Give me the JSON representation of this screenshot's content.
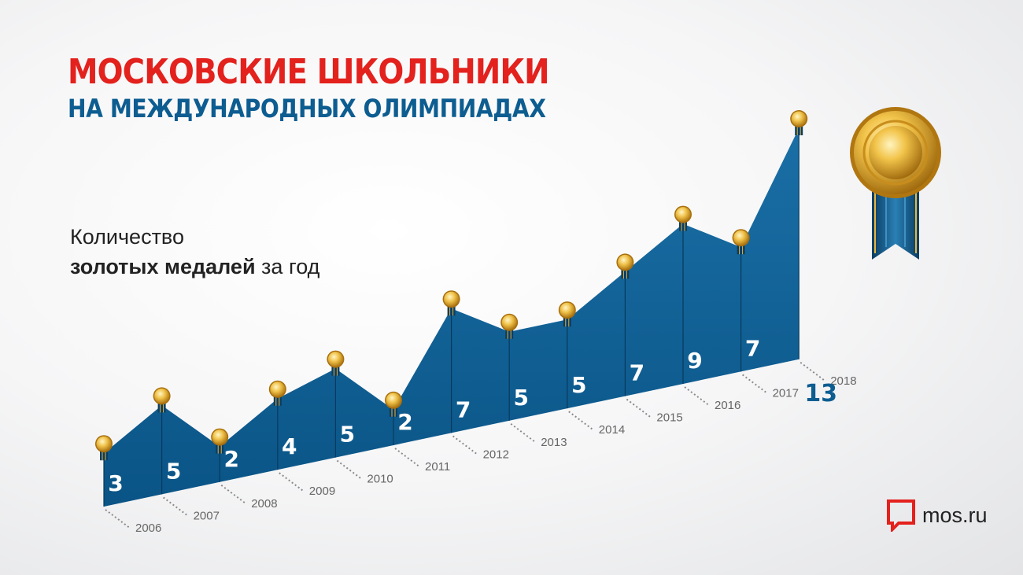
{
  "title": {
    "line1": "МОСКОВСКИЕ ШКОЛЬНИКИ",
    "line2": "НА МЕЖДУНАРОДНЫХ ОЛИМПИАДАХ"
  },
  "subtitle": {
    "line1": "Количество",
    "line2_bold": "золотых медалей",
    "line2_rest": " за год"
  },
  "logo": {
    "text": "mos.ru"
  },
  "colors": {
    "title_red": "#e3211d",
    "title_blue": "#0d5d91",
    "area_blue": "#0d5d91",
    "gold": "#e9b63a",
    "logo_red": "#e3211d"
  },
  "chart_data": {
    "type": "area",
    "x": [
      "2006",
      "2007",
      "2008",
      "2009",
      "2010",
      "2011",
      "2012",
      "2013",
      "2014",
      "2015",
      "2016",
      "2017",
      "2018"
    ],
    "values": [
      3,
      5,
      2,
      4,
      5,
      2,
      7,
      5,
      5,
      7,
      9,
      7,
      13
    ],
    "value_labels": [
      "3",
      "5",
      "2",
      "4",
      "5",
      "2",
      "7",
      "5",
      "5",
      "7",
      "9",
      "7",
      "13"
    ],
    "marker": "gold-medal-icon",
    "legend": "none",
    "grid": false
  }
}
